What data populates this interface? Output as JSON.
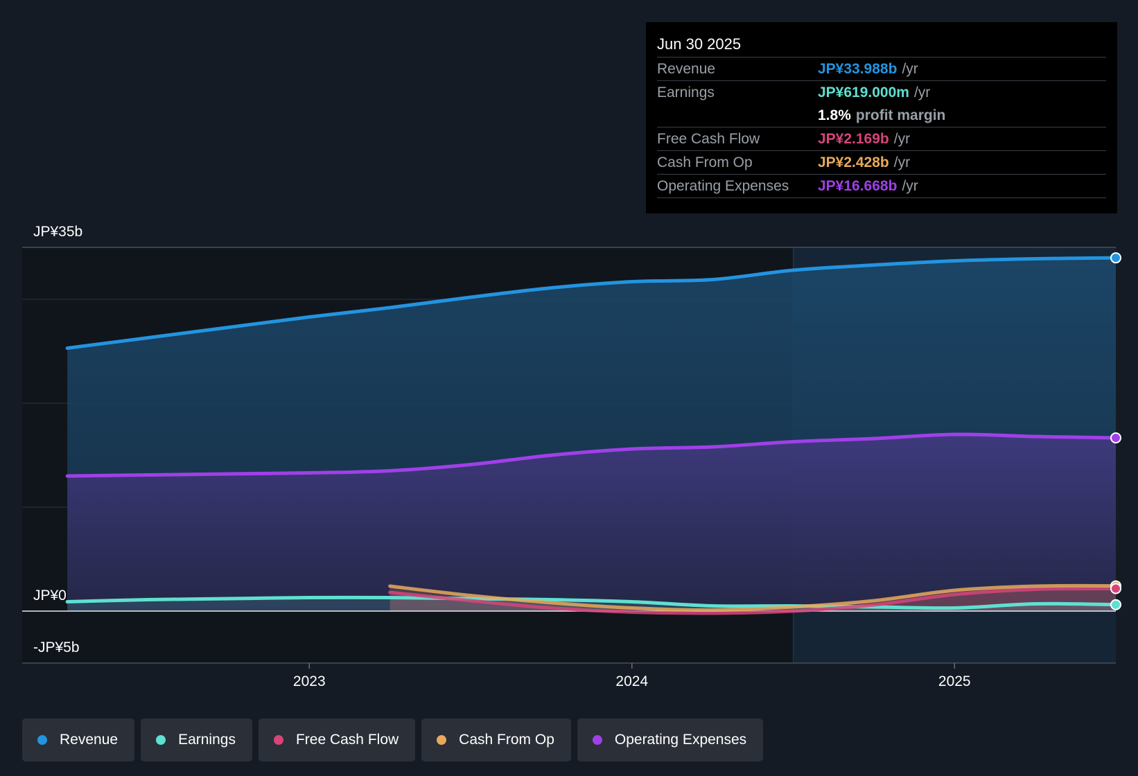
{
  "colors": {
    "revenue": "#2394e0",
    "earnings": "#5fe0d0",
    "fcf": "#d6457a",
    "cfo": "#e8a95c",
    "opex": "#a040e8"
  },
  "tooltip": {
    "date": "Jun 30 2025",
    "rows": [
      {
        "label": "Revenue",
        "value": "JP¥33.988b",
        "unit": "/yr"
      },
      {
        "label": "Earnings",
        "value": "JP¥619.000m",
        "unit": "/yr"
      },
      {
        "label": "",
        "value": "1.8%",
        "unit": "profit margin"
      },
      {
        "label": "Free Cash Flow",
        "value": "JP¥2.169b",
        "unit": "/yr"
      },
      {
        "label": "Cash From Op",
        "value": "JP¥2.428b",
        "unit": "/yr"
      },
      {
        "label": "Operating Expenses",
        "value": "JP¥16.668b",
        "unit": "/yr"
      }
    ]
  },
  "legend": [
    "Revenue",
    "Earnings",
    "Free Cash Flow",
    "Cash From Op",
    "Operating Expenses"
  ],
  "chart_data": {
    "type": "area",
    "title": "",
    "xlabel": "",
    "ylabel": "",
    "ylim": [
      -5,
      35
    ],
    "y_tick_labels": [
      "JP¥35b",
      "JP¥0",
      "-JP¥5b"
    ],
    "x_tick_labels": [
      "2023",
      "2024",
      "2025"
    ],
    "x_ticks": [
      2023.0,
      2024.0,
      2025.0
    ],
    "xlim": [
      2022.11,
      2025.5
    ],
    "highlight_start": 2024.5,
    "series": [
      {
        "name": "Revenue",
        "key": "revenue",
        "x": [
          2022.25,
          2022.5,
          2022.75,
          2023.0,
          2023.25,
          2023.5,
          2023.75,
          2024.0,
          2024.25,
          2024.5,
          2024.75,
          2025.0,
          2025.25,
          2025.5
        ],
        "values": [
          25.3,
          26.3,
          27.3,
          28.3,
          29.2,
          30.2,
          31.1,
          31.7,
          31.9,
          32.8,
          33.3,
          33.7,
          33.9,
          33.988
        ]
      },
      {
        "name": "Operating Expenses",
        "key": "opex",
        "x": [
          2022.25,
          2022.5,
          2022.75,
          2023.0,
          2023.25,
          2023.5,
          2023.75,
          2024.0,
          2024.25,
          2024.5,
          2024.75,
          2025.0,
          2025.25,
          2025.5
        ],
        "values": [
          13.0,
          13.1,
          13.2,
          13.3,
          13.5,
          14.1,
          15.0,
          15.6,
          15.8,
          16.3,
          16.6,
          17.0,
          16.8,
          16.668
        ]
      },
      {
        "name": "Earnings",
        "key": "earnings",
        "x": [
          2022.25,
          2022.5,
          2022.75,
          2023.0,
          2023.25,
          2023.5,
          2023.75,
          2024.0,
          2024.25,
          2024.5,
          2024.75,
          2025.0,
          2025.25,
          2025.5
        ],
        "values": [
          0.9,
          1.1,
          1.2,
          1.3,
          1.3,
          1.2,
          1.1,
          0.9,
          0.5,
          0.5,
          0.4,
          0.3,
          0.7,
          0.619
        ]
      },
      {
        "name": "Free Cash Flow",
        "key": "fcf",
        "x": [
          2023.25,
          2023.5,
          2023.75,
          2024.0,
          2024.25,
          2024.5,
          2024.75,
          2025.0,
          2025.25,
          2025.5
        ],
        "values": [
          1.8,
          1.0,
          0.3,
          -0.1,
          -0.2,
          0.0,
          0.6,
          1.6,
          2.1,
          2.169
        ]
      },
      {
        "name": "Cash From Op",
        "key": "cfo",
        "x": [
          2023.25,
          2023.5,
          2023.75,
          2024.0,
          2024.25,
          2024.5,
          2024.75,
          2025.0,
          2025.25,
          2025.5
        ],
        "values": [
          2.4,
          1.5,
          0.8,
          0.3,
          0.1,
          0.4,
          1.0,
          2.0,
          2.4,
          2.428
        ]
      }
    ]
  }
}
